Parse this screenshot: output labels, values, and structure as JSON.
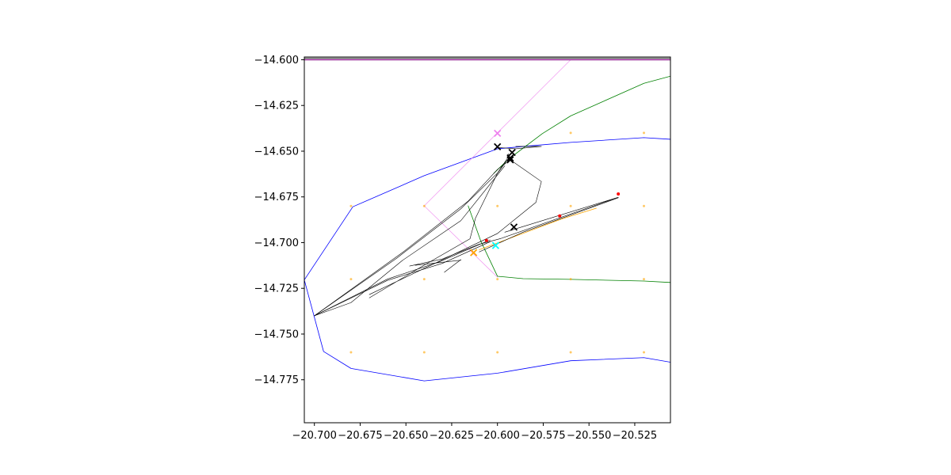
{
  "chart_data": {
    "type": "line",
    "title": "",
    "xlabel": "",
    "ylabel": "",
    "xlim": [
      -20.7055,
      -20.5055
    ],
    "ylim": [
      -14.7985,
      -14.5985
    ],
    "x_ticks": [
      -20.7,
      -20.675,
      -20.65,
      -20.625,
      -20.6,
      -20.575,
      -20.55,
      -20.525
    ],
    "x_tick_labels": [
      "−20.700",
      "−20.675",
      "−20.650",
      "−20.625",
      "−20.600",
      "−20.575",
      "−20.550",
      "−20.525"
    ],
    "y_ticks": [
      -14.6,
      -14.625,
      -14.65,
      -14.675,
      -14.7,
      -14.725,
      -14.75,
      -14.775
    ],
    "y_tick_labels": [
      "−14.600",
      "−14.625",
      "−14.650",
      "−14.675",
      "−14.700",
      "−14.725",
      "−14.750",
      "−14.775"
    ],
    "grid": false,
    "colors": {
      "boundary": "#0000ff",
      "green_line": "#008000",
      "violet_line": "#ee82ee",
      "orange_line": "#ffa500",
      "black_line": "#000000",
      "purple_line": "#800080",
      "grid_dots": "#ffa500",
      "red_points": "#ff0000",
      "cyan_marker": "#00ffff",
      "violet_marker": "#ee82ee"
    },
    "series": [
      {
        "kind": "line",
        "color": "#0000ff",
        "width": 0.8,
        "points": [
          [
            -20.7055,
            -14.7204
          ],
          [
            -20.679,
            -14.6804
          ],
          [
            -20.64,
            -14.6634
          ],
          [
            -20.6,
            -14.6487
          ],
          [
            -20.58,
            -14.6469
          ],
          [
            -20.56,
            -14.6452
          ],
          [
            -20.52,
            -14.6426
          ],
          [
            -20.5055,
            -14.6435
          ]
        ]
      },
      {
        "kind": "line",
        "color": "#0000ff",
        "width": 0.8,
        "points": [
          [
            -20.7055,
            -14.7204
          ],
          [
            -20.695,
            -14.7595
          ],
          [
            -20.68,
            -14.7688
          ],
          [
            -20.64,
            -14.7756
          ],
          [
            -20.6,
            -14.7714
          ],
          [
            -20.56,
            -14.7646
          ],
          [
            -20.52,
            -14.7629
          ],
          [
            -20.5055,
            -14.7654
          ]
        ]
      },
      {
        "kind": "line",
        "color": "#008000",
        "width": 0.8,
        "points": [
          [
            -20.5055,
            -14.609
          ],
          [
            -20.52,
            -14.6129
          ],
          [
            -20.56,
            -14.6307
          ],
          [
            -20.5755,
            -14.6404
          ],
          [
            -20.594,
            -14.6544
          ],
          [
            -20.602,
            -14.6621
          ]
        ]
      },
      {
        "kind": "line",
        "color": "#008000",
        "width": 0.8,
        "points": [
          [
            -20.616,
            -14.6799
          ],
          [
            -20.609,
            -14.6994
          ],
          [
            -20.6,
            -14.7184
          ],
          [
            -20.586,
            -14.7197
          ],
          [
            -20.56,
            -14.7201
          ],
          [
            -20.52,
            -14.721
          ],
          [
            -20.5055,
            -14.7218
          ]
        ]
      },
      {
        "kind": "line",
        "color": "#ee82ee",
        "width": 0.6,
        "points": [
          [
            -20.56,
            -14.6
          ],
          [
            -20.64,
            -14.6799
          ],
          [
            -20.6,
            -14.7189
          ]
        ]
      },
      {
        "kind": "line",
        "color": "#ffa500",
        "width": 0.8,
        "points": [
          [
            -20.61,
            -14.7039
          ],
          [
            -20.565,
            -14.6871
          ],
          [
            -20.546,
            -14.6812
          ]
        ]
      },
      {
        "kind": "line",
        "color": "#800080",
        "width": 1.2,
        "points": [
          [
            -20.7055,
            -14.6
          ],
          [
            -20.5055,
            -14.6
          ]
        ]
      },
      {
        "kind": "line",
        "color": "#000000",
        "width": 0.8,
        "points": [
          [
            -20.7055,
            -14.5992
          ],
          [
            -20.5055,
            -14.5992
          ]
        ]
      },
      {
        "kind": "line",
        "color": "#000000",
        "width": 0.6,
        "points": [
          [
            -20.7,
            -14.74
          ],
          [
            -20.652,
            -14.7055
          ],
          [
            -20.616,
            -14.6773
          ],
          [
            -20.6,
            -14.66
          ],
          [
            -20.592,
            -14.654
          ]
        ]
      },
      {
        "kind": "line",
        "color": "#000000",
        "width": 0.6,
        "points": [
          [
            -20.7,
            -14.74
          ],
          [
            -20.655,
            -14.7085
          ],
          [
            -20.62,
            -14.6815
          ],
          [
            -20.6,
            -14.662
          ],
          [
            -20.594,
            -14.653
          ]
        ]
      },
      {
        "kind": "line",
        "color": "#000000",
        "width": 0.6,
        "points": [
          [
            -20.7,
            -14.74
          ],
          [
            -20.68,
            -14.7328
          ],
          [
            -20.652,
            -14.7098
          ],
          [
            -20.62,
            -14.688
          ],
          [
            -20.596,
            -14.658
          ]
        ]
      },
      {
        "kind": "line",
        "color": "#000000",
        "width": 0.6,
        "points": [
          [
            -20.67,
            -14.7302
          ],
          [
            -20.64,
            -14.7123
          ],
          [
            -20.615,
            -14.6979
          ],
          [
            -20.612,
            -14.6866
          ],
          [
            -20.6,
            -14.6621
          ],
          [
            -20.594,
            -14.654
          ],
          [
            -20.576,
            -14.6666
          ],
          [
            -20.579,
            -14.678
          ],
          [
            -20.6,
            -14.695
          ],
          [
            -20.67,
            -14.7284
          ]
        ]
      },
      {
        "kind": "line",
        "color": "#000000",
        "width": 0.6,
        "points": [
          [
            -20.7,
            -14.74
          ],
          [
            -20.66,
            -14.7199
          ],
          [
            -20.632,
            -14.7106
          ],
          [
            -20.604,
            -14.6985
          ]
        ]
      },
      {
        "kind": "line",
        "color": "#000000",
        "width": 0.6,
        "points": [
          [
            -20.7,
            -14.74
          ],
          [
            -20.66,
            -14.7206
          ],
          [
            -20.63,
            -14.7113
          ],
          [
            -20.604,
            -14.6995
          ]
        ]
      },
      {
        "kind": "line",
        "color": "#000000",
        "width": 0.6,
        "points": [
          [
            -20.648,
            -14.7128
          ],
          [
            -20.63,
            -14.7089
          ],
          [
            -20.61,
            -14.7009
          ],
          [
            -20.598,
            -14.6977
          ],
          [
            -20.534,
            -14.6752
          ],
          [
            -20.596,
            -14.6943
          ]
        ]
      },
      {
        "kind": "line",
        "color": "#000000",
        "width": 0.6,
        "points": [
          [
            -20.61,
            -14.7051
          ],
          [
            -20.586,
            -14.6943
          ],
          [
            -20.534,
            -14.6755
          ]
        ]
      },
      {
        "kind": "line",
        "color": "#000000",
        "width": 0.6,
        "points": [
          [
            -20.645,
            -14.7124
          ],
          [
            -20.62,
            -14.7096
          ]
        ]
      },
      {
        "kind": "line",
        "color": "#000000",
        "width": 0.6,
        "points": [
          [
            -20.629,
            -14.7162
          ],
          [
            -20.62,
            -14.7093
          ]
        ]
      },
      {
        "kind": "line",
        "color": "#000000",
        "width": 0.6,
        "points": [
          [
            -20.6,
            -14.648
          ],
          [
            -20.59,
            -14.6487
          ],
          [
            -20.576,
            -14.6474
          ],
          [
            -20.59,
            -14.6474
          ]
        ]
      },
      {
        "kind": "line",
        "color": "#000000",
        "width": 0.6,
        "points": [
          [
            -20.594,
            -14.6514
          ],
          [
            -20.593,
            -14.6549
          ]
        ]
      },
      {
        "kind": "points",
        "color": "#ffa500",
        "size": 3,
        "points": [
          [
            -20.68,
            -14.68
          ],
          [
            -20.64,
            -14.68
          ],
          [
            -20.6,
            -14.68
          ],
          [
            -20.56,
            -14.68
          ],
          [
            -20.52,
            -14.68
          ],
          [
            -20.56,
            -14.64
          ],
          [
            -20.52,
            -14.64
          ],
          [
            -20.68,
            -14.72
          ],
          [
            -20.64,
            -14.72
          ],
          [
            -20.6,
            -14.72
          ],
          [
            -20.56,
            -14.72
          ],
          [
            -20.52,
            -14.72
          ],
          [
            -20.68,
            -14.76
          ],
          [
            -20.64,
            -14.76
          ],
          [
            -20.6,
            -14.76
          ],
          [
            -20.56,
            -14.76
          ],
          [
            -20.52,
            -14.76
          ]
        ]
      },
      {
        "kind": "points",
        "color": "#ff0000",
        "size": 4,
        "points": [
          [
            -20.534,
            -14.6734
          ],
          [
            -20.566,
            -14.6854
          ],
          [
            -20.606,
            -14.6988
          ]
        ]
      },
      {
        "kind": "xmarkers",
        "color": "#000000",
        "size": 8,
        "points": [
          [
            -20.6,
            -14.6476
          ],
          [
            -20.592,
            -14.6507
          ],
          [
            -20.593,
            -14.6547
          ],
          [
            -20.593,
            -14.6537
          ],
          [
            -20.591,
            -14.6915
          ]
        ]
      },
      {
        "kind": "xmarkers",
        "color": "#ee82ee",
        "size": 8,
        "points": [
          [
            -20.6,
            -14.6402
          ]
        ]
      },
      {
        "kind": "xmarkers",
        "color": "#00ffff",
        "size": 8,
        "points": [
          [
            -20.601,
            -14.7016
          ]
        ]
      },
      {
        "kind": "xmarkers",
        "color": "#ffa500",
        "size": 8,
        "points": [
          [
            -20.613,
            -14.7055
          ]
        ]
      }
    ]
  }
}
